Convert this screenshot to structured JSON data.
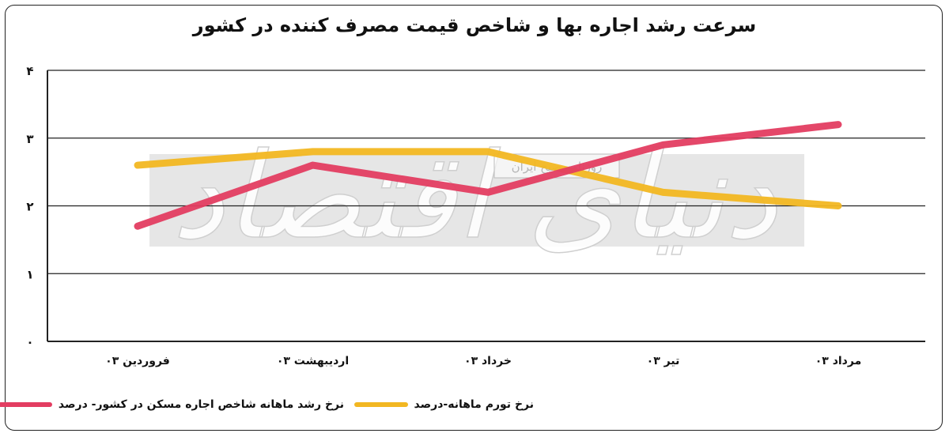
{
  "title": "سرعت رشد اجاره بها و شاخص قیمت مصرف کننده در کشور",
  "watermark": {
    "main": "دنیای اقتصاد",
    "sub": "روزنامه صبح ایران"
  },
  "colors": {
    "rent": "#E33D61",
    "inflation": "#F2B722",
    "grid": "#222222"
  },
  "chart_data": {
    "type": "line",
    "title": "سرعت رشد اجاره بها و شاخص قیمت مصرف کننده در کشور",
    "categories": [
      "فروردین ۰۳",
      "اردیبهشت ۰۳",
      "خرداد ۰۳",
      "تیر ۰۳",
      "مرداد ۰۳"
    ],
    "y_ticks": [
      "۰",
      "۱",
      "۲",
      "۳",
      "۴"
    ],
    "ylim": [
      0,
      4
    ],
    "grid": true,
    "legend_position": "bottom",
    "series": [
      {
        "key": "rent",
        "name": "نرخ رشد ماهانه شاخص اجاره مسکن در کشور- درصد",
        "color": "#E33D61",
        "values": [
          1.7,
          2.6,
          2.2,
          2.9,
          3.2
        ]
      },
      {
        "key": "inflation",
        "name": "نرخ تورم ماهانه-درصد",
        "color": "#F2B722",
        "values": [
          2.6,
          2.8,
          2.8,
          2.2,
          2.0
        ]
      }
    ]
  }
}
